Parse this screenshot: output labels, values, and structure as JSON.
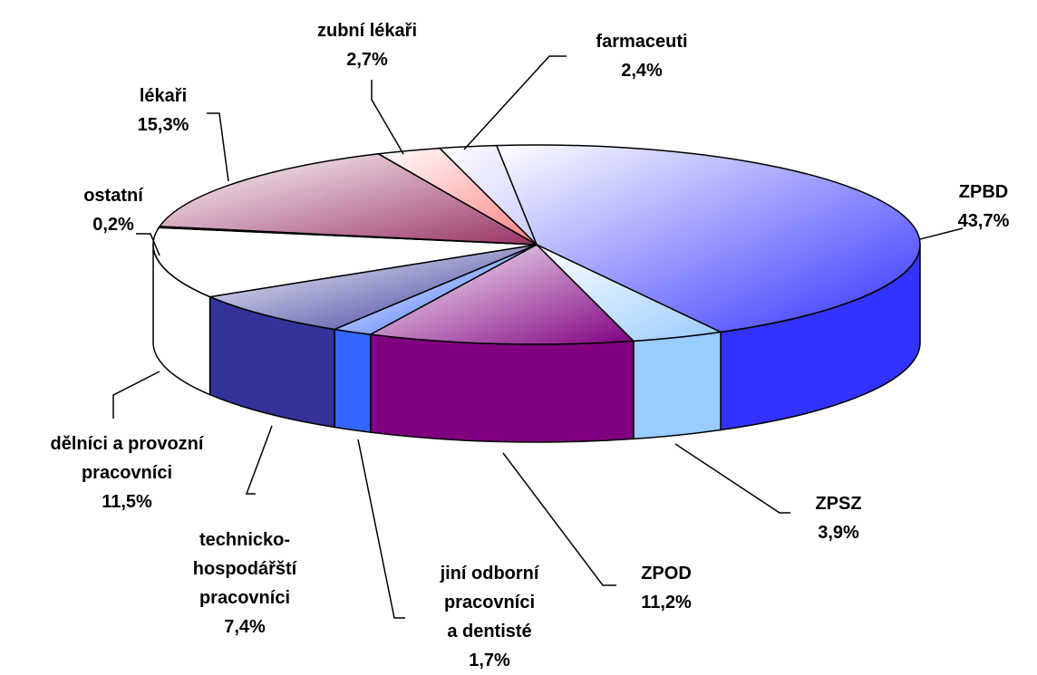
{
  "chart_data": {
    "type": "pie3d",
    "categories": [
      "ZPBD",
      "ZPSZ",
      "ZPOD",
      "jiní odborní pracovníci a dentisté",
      "technicko-hospodářští pracovníci",
      "dělníci a provozní pracovníci",
      "ostatní",
      "lékaři",
      "zubní lékaři",
      "farmaceuti"
    ],
    "values": [
      43.7,
      3.9,
      11.2,
      1.7,
      7.4,
      11.5,
      0.2,
      15.3,
      2.7,
      2.4
    ],
    "value_labels": [
      "43,7%",
      "3,9%",
      "11,2%",
      "1,7%",
      "7,4%",
      "11,5%",
      "0,2%",
      "15,3%",
      "2,7%",
      "2,4%"
    ],
    "colors": [
      "#3333ff",
      "#99ccff",
      "#800080",
      "#3366ff",
      "#333399",
      "#ffffff",
      "#ffffff",
      "#993366",
      "#ff8080",
      "#ccccff"
    ]
  }
}
